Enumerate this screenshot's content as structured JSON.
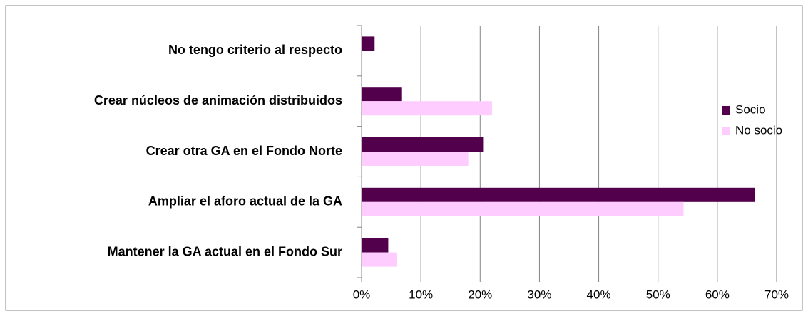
{
  "chart_data": {
    "type": "hbar",
    "categories": [
      "No tengo criterio al respecto",
      "Crear núcleos de animación distribuidos",
      "Crear otra GA en el Fondo Norte",
      "Ampliar el aforo actual de la GA",
      "Mantener la GA actual en el Fondo Sur"
    ],
    "series": [
      {
        "name": "Socio",
        "color": "#52004c",
        "values": [
          2.2,
          6.7,
          20.5,
          66.3,
          4.5
        ]
      },
      {
        "name": "No socio",
        "color": "#ffccff",
        "values": [
          0,
          22,
          18,
          54.3,
          5.9
        ]
      }
    ],
    "xlim": [
      0,
      70
    ],
    "xticks": [
      {
        "value": 0,
        "label": "0%"
      },
      {
        "value": 10,
        "label": "10%"
      },
      {
        "value": 20,
        "label": "20%"
      },
      {
        "value": 30,
        "label": "30%"
      },
      {
        "value": 40,
        "label": "40%"
      },
      {
        "value": 50,
        "label": "50%"
      },
      {
        "value": 60,
        "label": "60%"
      },
      {
        "value": 70,
        "label": "70%"
      }
    ],
    "grid": true,
    "legend": "right"
  }
}
